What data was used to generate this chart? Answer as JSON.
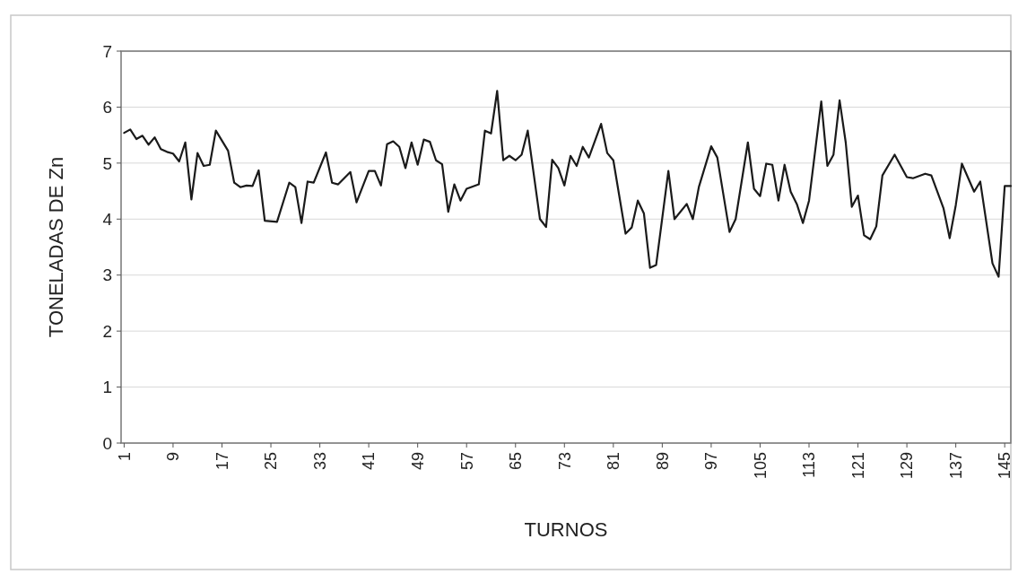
{
  "chart_data": {
    "type": "line",
    "xlabel": "TURNOS",
    "ylabel": "TONELADAS DE Zn",
    "xlim": [
      0.5,
      146
    ],
    "xticks": [
      1,
      9,
      17,
      25,
      33,
      41,
      49,
      57,
      65,
      73,
      81,
      89,
      97,
      105,
      113,
      121,
      129,
      137,
      145
    ],
    "ylim": [
      0,
      7
    ],
    "yticks": [
      0,
      1,
      2,
      3,
      4,
      5,
      6,
      7
    ],
    "grid": "y",
    "marker": "none",
    "line_style": "solid",
    "series": [
      {
        "color": "#1a1a1a",
        "x": [
          1,
          2,
          3,
          4,
          5,
          6,
          7,
          8,
          9,
          10,
          11,
          12,
          13,
          14,
          15,
          16,
          18,
          19,
          20,
          21,
          22,
          23,
          24,
          26,
          28,
          29,
          30,
          31,
          32,
          34,
          35,
          36,
          38,
          39,
          41,
          42,
          43,
          44,
          45,
          46,
          47,
          48,
          49,
          50,
          51,
          52,
          53,
          54,
          55,
          56,
          57,
          59,
          60,
          61,
          62,
          63,
          64,
          65,
          66,
          67,
          69,
          70,
          71,
          72,
          73,
          74,
          75,
          76,
          77,
          79,
          80,
          81,
          83,
          84,
          85,
          86,
          87,
          88,
          90,
          91,
          93,
          94,
          95,
          97,
          98,
          100,
          101,
          103,
          104,
          105,
          106,
          107,
          108,
          109,
          110,
          111,
          112,
          113,
          115,
          116,
          117,
          118,
          119,
          120,
          121,
          122,
          123,
          124,
          125,
          127,
          129,
          130,
          132,
          133,
          135,
          136,
          137,
          138,
          140,
          141,
          143,
          144,
          145,
          146
        ],
        "values": [
          5.54,
          5.6,
          5.43,
          5.49,
          5.33,
          5.46,
          5.25,
          5.2,
          5.17,
          5.03,
          5.37,
          4.35,
          5.18,
          4.95,
          4.97,
          5.58,
          5.22,
          4.65,
          4.57,
          4.6,
          4.59,
          4.87,
          3.97,
          3.95,
          4.65,
          4.57,
          3.93,
          4.67,
          4.65,
          5.19,
          4.65,
          4.62,
          4.84,
          4.3,
          4.86,
          4.86,
          4.6,
          5.34,
          5.39,
          5.29,
          4.91,
          5.37,
          4.97,
          5.42,
          5.38,
          5.05,
          4.98,
          4.13,
          4.62,
          4.33,
          4.54,
          4.62,
          5.58,
          5.53,
          6.29,
          5.05,
          5.13,
          5.05,
          5.15,
          5.58,
          4.0,
          3.86,
          5.06,
          4.91,
          4.6,
          5.13,
          4.95,
          5.29,
          5.1,
          5.7,
          5.18,
          5.05,
          3.74,
          3.85,
          4.33,
          4.1,
          3.13,
          3.18,
          4.86,
          4.0,
          4.27,
          4.0,
          4.58,
          5.3,
          5.1,
          3.77,
          4.0,
          5.37,
          4.54,
          4.41,
          4.99,
          4.97,
          4.33,
          4.97,
          4.49,
          4.27,
          3.93,
          4.33,
          6.1,
          4.95,
          5.15,
          6.12,
          5.37,
          4.22,
          4.42,
          3.71,
          3.64,
          3.87,
          4.78,
          5.15,
          4.75,
          4.73,
          4.81,
          4.78,
          4.19,
          3.66,
          4.25,
          4.99,
          4.49,
          4.67,
          3.21,
          2.97,
          4.59,
          4.59
        ]
      }
    ]
  }
}
